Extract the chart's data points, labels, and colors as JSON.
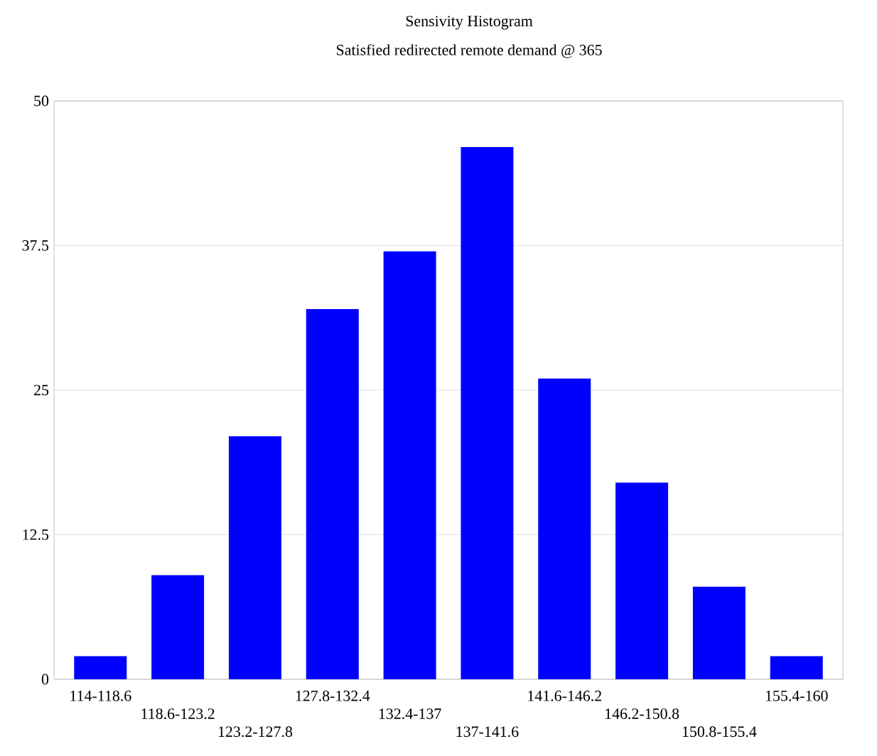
{
  "chart_data": {
    "type": "bar",
    "title": "Sensivity Histogram",
    "subtitle": "Satisfied redirected remote demand @ 365",
    "categories": [
      "114-118.6",
      "118.6-123.2",
      "123.2-127.8",
      "127.8-132.4",
      "132.4-137",
      "137-141.6",
      "141.6-146.2",
      "146.2-150.8",
      "150.8-155.4",
      "155.4-160"
    ],
    "values": [
      2,
      9,
      21,
      32,
      37,
      46,
      26,
      17,
      8,
      2
    ],
    "color": "#0000ff",
    "ylim": [
      0,
      50
    ],
    "yticks": [
      0,
      12.5,
      25,
      37.5,
      50
    ],
    "grid": "y"
  }
}
